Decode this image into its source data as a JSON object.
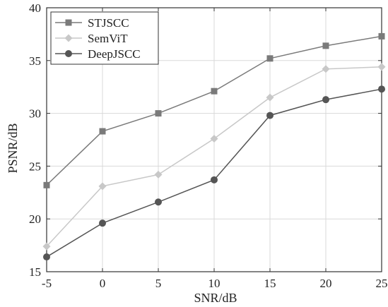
{
  "chart_data": {
    "type": "line",
    "title": "",
    "xlabel": "SNR/dB",
    "ylabel": "PSNR/dB",
    "x": [
      -5,
      0,
      5,
      10,
      15,
      20,
      25
    ],
    "xlim": [
      -5,
      25
    ],
    "ylim": [
      15,
      40
    ],
    "xticks": [
      "-5",
      "0",
      "5",
      "10",
      "15",
      "20",
      "25"
    ],
    "yticks": [
      "15",
      "20",
      "25",
      "30",
      "35",
      "40"
    ],
    "grid": true,
    "legend_position": "top-left",
    "series": [
      {
        "name": "STJSCC",
        "values": [
          23.2,
          28.3,
          30.0,
          32.1,
          35.2,
          36.4,
          37.3
        ],
        "color": "#7a7a7a",
        "marker": "square"
      },
      {
        "name": "SemViT",
        "values": [
          17.4,
          23.1,
          24.2,
          27.6,
          31.5,
          34.2,
          34.4
        ],
        "color": "#c8c8c8",
        "marker": "diamond"
      },
      {
        "name": "DeepJSCC",
        "values": [
          16.4,
          19.6,
          21.6,
          23.7,
          29.8,
          31.3,
          32.3
        ],
        "color": "#555555",
        "marker": "circle"
      }
    ]
  }
}
